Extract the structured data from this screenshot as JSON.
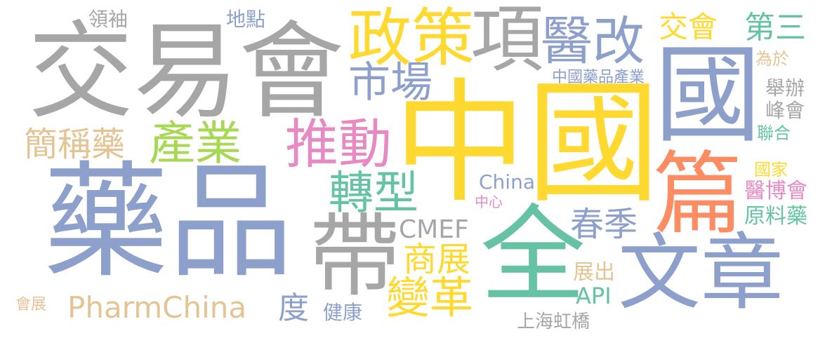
{
  "palette": {
    "gray": "#a6a6a6",
    "blue": "#8da0cb",
    "yellow": "#ffd92f",
    "green": "#66c2a5",
    "pink": "#e78ac3",
    "lime": "#a6d854",
    "orange": "#fc8d62",
    "tan": "#e5c494"
  },
  "words": {
    "zhongguo": "中國",
    "guo": "國",
    "yaopin": "藥品",
    "jiaoyihui": "交易會",
    "zhengce": "政策",
    "xiang": "項",
    "yigai": "醫改",
    "quan": "全",
    "dai": "帶",
    "pian": "篇",
    "wenzhang": "文章",
    "tuidong": "推動",
    "chanye": "產業",
    "zhuanxing": "轉型",
    "shichang": "市場",
    "pharmchina": "PharmChina",
    "cmef": "CMEF",
    "jianchengyao": "簡稱藥",
    "biange": "變革",
    "shangzhan": "商展",
    "chunji": "春季",
    "jiaohui": "交會",
    "disan": "第三",
    "china": "China",
    "api": "API",
    "zhanchu": "展出",
    "du": "度",
    "lingxiu": "領袖",
    "didian": "地點",
    "weiyu": "為於",
    "zhongguoyaopinchanye": "中國藥品產業",
    "jubian": "舉辦",
    "fenghui": "峰會",
    "lianhe": "聯合",
    "guojia": "國家",
    "yibohui": "醫博會",
    "yuanliaoyao": "原料藥",
    "zhongxin": "中心",
    "jiankang": "健康",
    "shanghaihongqiao": "上海虹橋",
    "huizhan": "會展"
  }
}
